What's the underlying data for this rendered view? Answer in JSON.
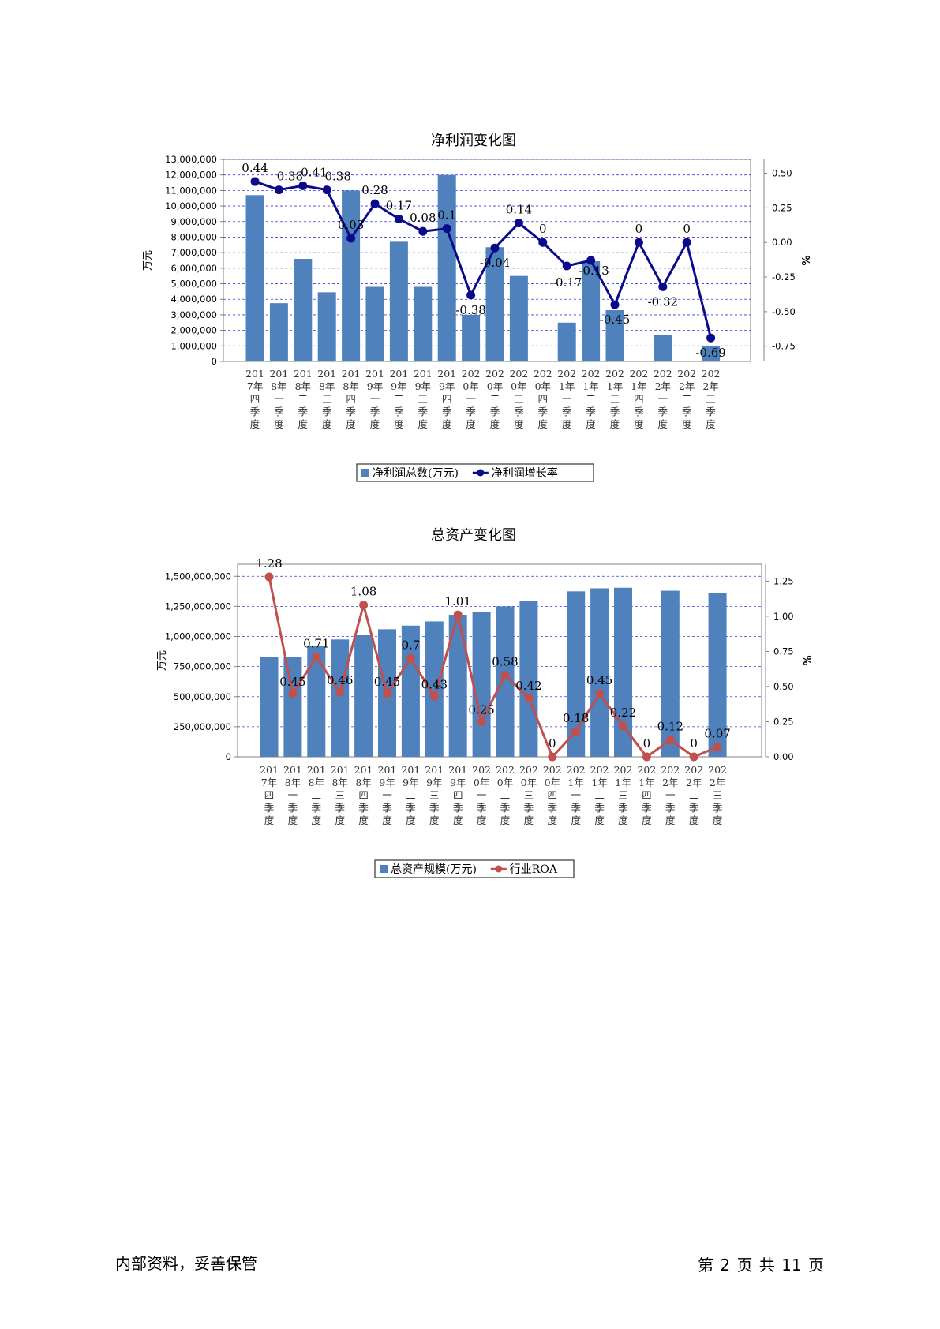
{
  "charts": [
    {
      "type": "bar+line",
      "title": "净利润变化图",
      "ylabel_left": "万元",
      "ylabel_right": "%",
      "categories": [
        "2017年四季度",
        "2018年一季度",
        "2018年二季度",
        "2018年三季度",
        "2018年四季度",
        "2019年一季度",
        "2019年二季度",
        "2019年三季度",
        "2019年四季度",
        "2020年一季度",
        "2020年二季度",
        "2020年三季度",
        "2020年四季度",
        "2021年一季度",
        "2021年二季度",
        "2021年三季度",
        "2021年四季度",
        "2022年一季度",
        "2022年二季度",
        "2022年三季度"
      ],
      "bar_series": {
        "name": "净利润总数(万元)",
        "color": "#4f81bd",
        "values": [
          10700000,
          3750000,
          6600000,
          4450000,
          11000000,
          4800000,
          7700000,
          4800000,
          12000000,
          3000000,
          7350000,
          5500000,
          0,
          2500000,
          6450000,
          3300000,
          0,
          1700000,
          0,
          1000000
        ]
      },
      "line_series": {
        "name": "净利润增长率",
        "color": "#0a0a8a",
        "values": [
          0.44,
          0.38,
          0.41,
          0.38,
          0.03,
          0.28,
          0.17,
          0.08,
          0.1,
          -0.38,
          -0.04,
          0.14,
          0,
          -0.17,
          -0.13,
          -0.45,
          0,
          -0.32,
          0,
          -0.69
        ],
        "labels": [
          "0.44",
          "0.38",
          "0.41",
          "0.38",
          "0.03",
          "0.28",
          "0.17",
          "0.08",
          "0.1",
          "-0.38",
          "-0.04",
          "0.14",
          "0",
          "-0.17",
          "-0.13",
          "-0.45",
          "0",
          "-0.32",
          "0",
          "-0.69"
        ]
      },
      "left_ticks": [
        "0",
        "1,000,000",
        "2,000,000",
        "3,000,000",
        "4,000,000",
        "5,000,000",
        "6,000,000",
        "7,000,000",
        "8,000,000",
        "9,000,000",
        "10,000,000",
        "11,000,000",
        "12,000,000",
        "13,000,000"
      ],
      "left_range": [
        0,
        13000000
      ],
      "right_ticks": [
        "-0.75",
        "-0.50",
        "-0.25",
        "0.00",
        "0.25",
        "0.50"
      ],
      "right_tick_values": [
        -0.75,
        -0.5,
        -0.25,
        0,
        0.25,
        0.5
      ],
      "right_range": [
        -0.86,
        0.6
      ],
      "legend_position": "bottom"
    },
    {
      "type": "bar+line",
      "title": "总资产变化图",
      "ylabel_left": "万元",
      "ylabel_right": "%",
      "categories": [
        "2017年四季度",
        "2018年一季度",
        "2018年二季度",
        "2018年三季度",
        "2018年四季度",
        "2019年一季度",
        "2019年二季度",
        "2019年三季度",
        "2019年四季度",
        "2020年一季度",
        "2020年二季度",
        "2020年三季度",
        "2020年四季度",
        "2021年一季度",
        "2021年二季度",
        "2021年三季度",
        "2021年四季度",
        "2022年一季度",
        "2022年二季度",
        "2022年三季度"
      ],
      "bar_series": {
        "name": "总资产规模(万元)",
        "color": "#4f81bd",
        "values": [
          830000000,
          830000000,
          920000000,
          975000000,
          1010000000,
          1060000000,
          1090000000,
          1125000000,
          1180000000,
          1205000000,
          1250000000,
          1295000000,
          0,
          1375000000,
          1400000000,
          1405000000,
          0,
          1380000000,
          0,
          1360000000
        ]
      },
      "line_series": {
        "name": "行业ROA",
        "color": "#c0504d",
        "values": [
          1.28,
          0.45,
          0.71,
          0.46,
          1.08,
          0.45,
          0.7,
          0.43,
          1.01,
          0.25,
          0.58,
          0.42,
          0,
          0.18,
          0.45,
          0.22,
          0,
          0.12,
          0,
          0.07
        ],
        "labels": [
          "1.28",
          "0.45",
          "0.71",
          "0.46",
          "1.08",
          "0.45",
          "0.7",
          "0.43",
          "1.01",
          "0.25",
          "0.58",
          "0.42",
          "0",
          "0.18",
          "0.45",
          "0.22",
          "0",
          "0.12",
          "0",
          "0.07"
        ]
      },
      "left_ticks": [
        "0",
        "250,000,000",
        "500,000,000",
        "750,000,000",
        "1,000,000,000",
        "1,250,000,000",
        "1,500,000,000"
      ],
      "left_range": [
        0,
        1600000000
      ],
      "right_ticks": [
        "0.00",
        "0.25",
        "0.50",
        "0.75",
        "1.00",
        "1.25"
      ],
      "right_tick_values": [
        0,
        0.25,
        0.5,
        0.75,
        1,
        1.25
      ],
      "right_range": [
        0,
        1.37
      ],
      "legend_position": "bottom"
    }
  ],
  "footer": {
    "left": "内部资料，妥善保管",
    "right": "第 2 页  共 11 页"
  }
}
